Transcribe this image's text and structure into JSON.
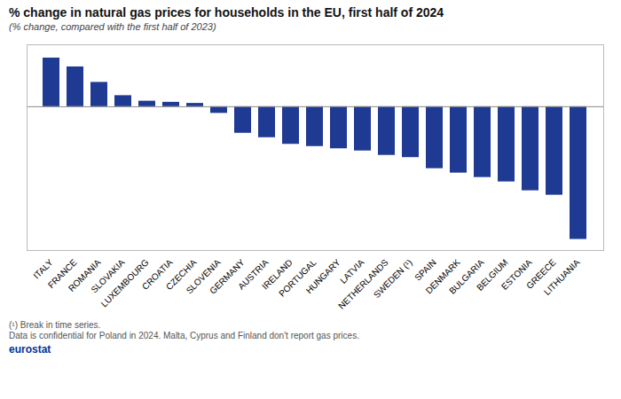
{
  "chart_data": {
    "type": "bar",
    "title": "% change in natural gas prices for households in the EU, first half of 2024",
    "subtitle": "(% change, compared with the first half of 2023)",
    "categories": [
      "ITALY",
      "FRANCE",
      "ROMANIA",
      "SLOVAKIA",
      "LUXEMBOURG",
      "CROATIA",
      "CZECHIA",
      "SLOVENIA",
      "GERMANY",
      "AUSTRIA",
      "IRELAND",
      "PORTUGAL",
      "HUNGARY",
      "LATVIA",
      "NETHERLANDS",
      "SWEDEN (¹)",
      "SPAIN",
      "DENMARK",
      "BULGARIA",
      "BELGIUM",
      "ESTONIA",
      "GREECE",
      "LITHUANIA"
    ],
    "values": [
      22,
      18,
      11,
      5,
      2.5,
      2,
      1.5,
      -3,
      -12,
      -14,
      -17,
      -18,
      -19,
      -20,
      -22,
      -23,
      -28,
      -30,
      -32,
      -34,
      -38,
      -40,
      -60
    ],
    "color": "#1f3a93",
    "ylim": [
      -65,
      28
    ],
    "yticks": [],
    "grid": false,
    "tick_labels": "x",
    "annotations": [
      "(¹) Break in time series.",
      "Data is confidential for Poland in 2024. Malta, Cyprus and Finland don't report gas prices.",
      "eurostat"
    ]
  }
}
